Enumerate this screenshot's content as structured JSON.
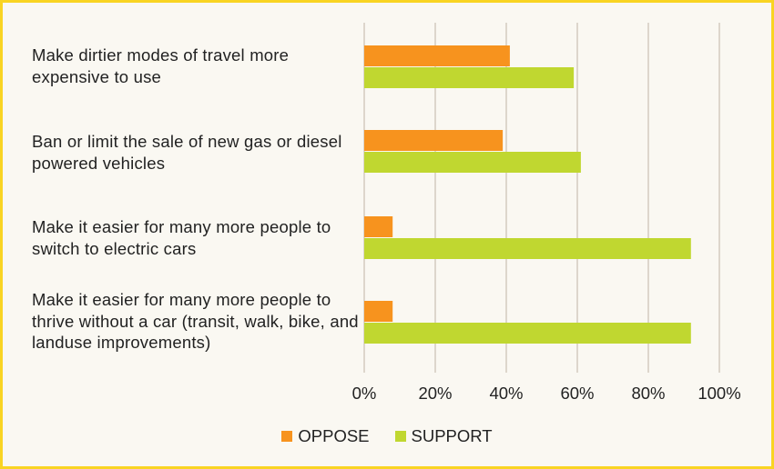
{
  "chart_data": {
    "type": "bar",
    "orientation": "horizontal",
    "categories": [
      "Make dirtier modes of travel more expensive to use",
      "Ban or limit the sale of new gas or diesel powered vehicles",
      "Make it easier for many more people to switch to electric cars",
      "Make it easier for many more people to thrive without a car (transit, walk, bike, and landuse improvements)"
    ],
    "series": [
      {
        "name": "OPPOSE",
        "color": "#f7931e",
        "values": [
          41,
          39,
          8,
          8
        ]
      },
      {
        "name": "SUPPORT",
        "color": "#c0d730",
        "values": [
          59,
          61,
          92,
          92
        ]
      }
    ],
    "xlim": [
      0,
      100
    ],
    "ticks": [
      "0%",
      "20%",
      "40%",
      "60%",
      "80%",
      "100%"
    ],
    "grid": true,
    "legend_position": "bottom"
  }
}
